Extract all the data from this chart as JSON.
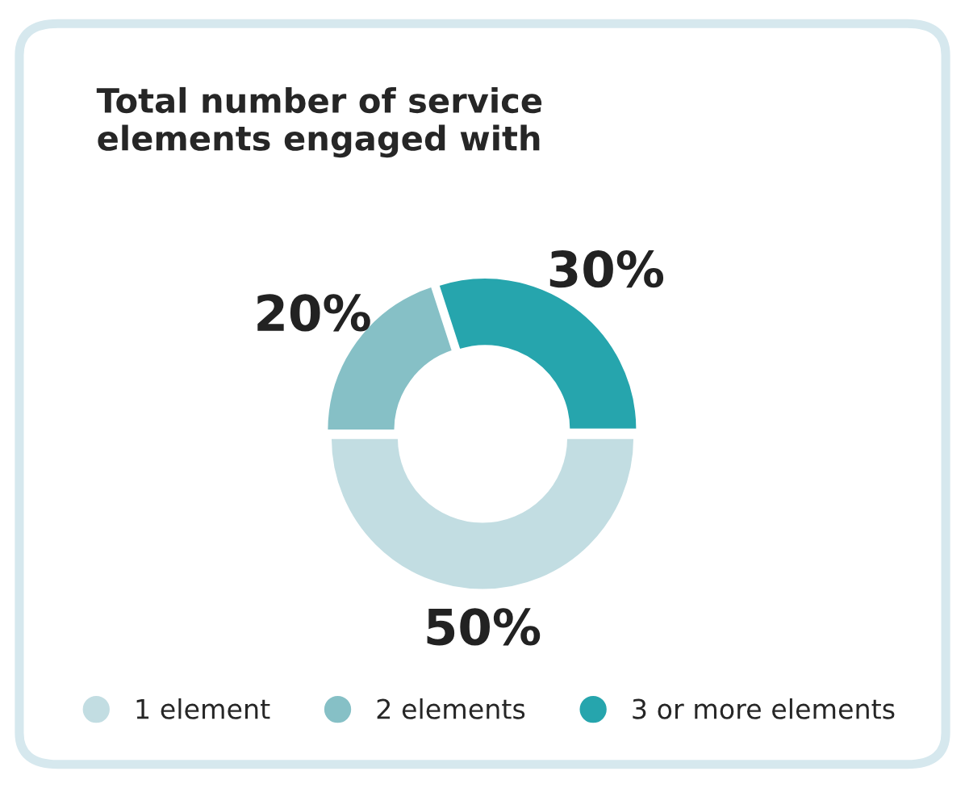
{
  "chart_data": {
    "type": "donut",
    "title": "Total number of service\nelements engaged with",
    "categories": [
      "1 element",
      "2 elements",
      "3 or more elements"
    ],
    "values": [
      50,
      20,
      30
    ],
    "colors": [
      "#c2dde2",
      "#86c0c6",
      "#26a5ad"
    ],
    "value_labels": [
      "50%",
      "20%",
      "30%"
    ],
    "legend": "bottom"
  }
}
